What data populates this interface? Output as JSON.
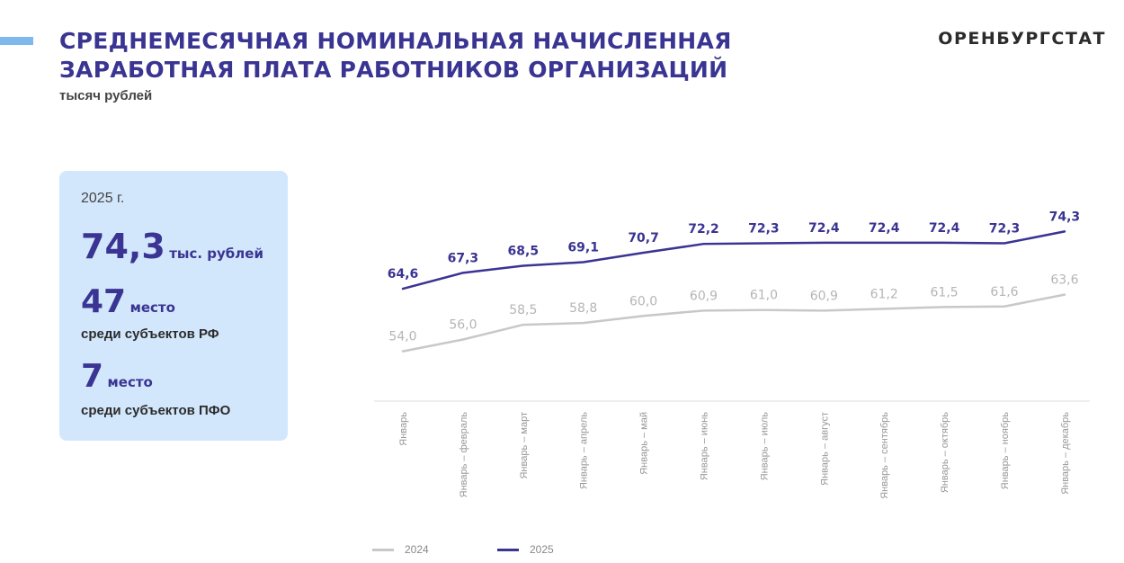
{
  "header": {
    "title_line1": "СРЕДНЕМЕСЯЧНАЯ НОМИНАЛЬНАЯ НАЧИСЛЕННАЯ",
    "title_line2": "ЗАРАБОТНАЯ ПЛАТА РАБОТНИКОВ ОРГАНИЗАЦИЙ",
    "subtitle": "тысяч рублей",
    "brand": "ОРЕНБУРГСТАТ"
  },
  "info": {
    "year": "2025 г.",
    "salary_value": "74,3",
    "salary_unit": "тыс. рублей",
    "rank_rf_value": "47",
    "rank_rf_unit": "место",
    "rank_rf_desc": "среди субъектов РФ",
    "rank_pfo_value": "7",
    "rank_pfo_unit": "место",
    "rank_pfo_desc": "среди субъектов ПФО"
  },
  "chart_data": {
    "type": "line",
    "categories": [
      "Январь",
      "Январь – февраль",
      "Январь – март",
      "Январь – апрель",
      "Январь – май",
      "Январь – июнь",
      "Январь – июль",
      "Январь – август",
      "Январь – сентябрь",
      "Январь – октябрь",
      "Январь – ноябрь",
      "Январь – декабрь"
    ],
    "series": [
      {
        "name": "2024",
        "color": "#c8c8c8",
        "label_color": "#b5b5b5",
        "values": [
          54.0,
          56.0,
          58.5,
          58.8,
          60.0,
          60.9,
          61.0,
          60.9,
          61.2,
          61.5,
          61.6,
          63.6
        ],
        "labels": [
          "54,0",
          "56,0",
          "58,5",
          "58,8",
          "60,0",
          "60,9",
          "61,0",
          "60,9",
          "61,2",
          "61,5",
          "61,6",
          "63,6"
        ]
      },
      {
        "name": "2025",
        "color": "#3a3492",
        "label_color": "#3a3492",
        "values": [
          64.6,
          67.3,
          68.5,
          69.1,
          70.7,
          72.2,
          72.3,
          72.4,
          72.4,
          72.4,
          72.3,
          74.3
        ],
        "labels": [
          "64,6",
          "67,3",
          "68,5",
          "69,1",
          "70,7",
          "72,2",
          "72,3",
          "72,4",
          "72,4",
          "72,4",
          "72,3",
          "74,3"
        ]
      }
    ],
    "ylim": [
      48,
      80
    ],
    "grid": false,
    "legend_position": "bottom-left"
  }
}
